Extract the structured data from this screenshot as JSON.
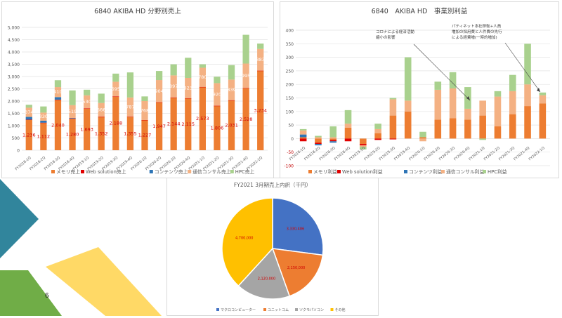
{
  "page_number": "6",
  "chart_data": [
    {
      "id": "sales_by_segment",
      "type": "bar",
      "stacked": true,
      "title": "6840 AKIBA HD 分野別売上",
      "ylim": [
        0,
        5000
      ],
      "y_ticks": [
        "0",
        "500",
        "1,000",
        "1,500",
        "2,000",
        "2,500",
        "3,000",
        "3,500",
        "4,000",
        "4,500",
        "5,000"
      ],
      "grid": true,
      "legend_position": "bottom",
      "categories": [
        "FY2018-1Q",
        "FY2018-2Q",
        "FY2018-3Q",
        "FY2018-4Q",
        "FY2019-1Q",
        "FY2019-2Q",
        "FY2019-3Q",
        "FY2019-4Q",
        "FY2020-1Q",
        "FY2020-2Q",
        "FY2020-3Q",
        "FY2020-4Q",
        "FY2021-1Q",
        "FY2021-2Q",
        "FY2021-3Q",
        "FY2021-4Q",
        "FY2022-1Q"
      ],
      "series": [
        {
          "name": "メモリ売上",
          "color": "#ED7D31",
          "values": [
            1236,
            1112,
            2040,
            1280,
            1693,
            1352,
            2188,
            1355,
            1227,
            1947,
            2144,
            2115,
            2573,
            1806,
            2031,
            2528,
            3234
          ],
          "labels": [
            "1,236",
            "1,112",
            "2,040",
            "1,280",
            "1,693",
            "1,352",
            "2,188",
            "1,355",
            "1,227",
            "1,947",
            "2,144",
            "2,115",
            "2,573",
            "1,806",
            "2,031",
            "2,528",
            "3,234"
          ]
        },
        {
          "name": "Web solution売上",
          "color": "#E00000",
          "values": [
            10,
            10,
            20,
            15,
            10,
            5,
            5,
            5,
            5,
            5,
            5,
            5,
            5,
            5,
            5,
            5,
            5
          ]
        },
        {
          "name": "コンテンツ売上",
          "color": "#2E75B6",
          "values": [
            110,
            80,
            100,
            20,
            0,
            0,
            0,
            0,
            0,
            0,
            0,
            0,
            0,
            0,
            0,
            0,
            0
          ]
        },
        {
          "name": "通信コンサル売上",
          "color": "#F4B183",
          "values": [
            374,
            330,
            410,
            519,
            530,
            566,
            595,
            787,
            768,
            904,
            897,
            823,
            780,
            920,
            839,
            995,
            883
          ],
          "labels": [
            "374",
            "330",
            "410",
            "519",
            "530",
            "566",
            "595",
            "787",
            "768",
            "904",
            "897",
            "823",
            "780",
            "920",
            "839",
            "995",
            "883"
          ]
        },
        {
          "name": "HPC売上",
          "color": "#A9D18E",
          "values": [
            120,
            250,
            280,
            600,
            230,
            380,
            330,
            1020,
            190,
            370,
            450,
            820,
            140,
            260,
            590,
            1170,
            220
          ]
        }
      ]
    },
    {
      "id": "profit_by_segment",
      "type": "bar",
      "stacked": true,
      "title": "6840　AKIBA HD　事業別利益",
      "ylim": [
        -100,
        400
      ],
      "y_ticks": [
        "-100",
        "-50",
        "0",
        "50",
        "100",
        "150",
        "200",
        "250",
        "300",
        "350",
        "400"
      ],
      "grid": true,
      "legend_position": "bottom",
      "categories": [
        "FY2018-1Q",
        "FY2018-2Q",
        "FY2018-3Q",
        "FY2018-4Q",
        "FY2019-1Q",
        "FY2019-2Q",
        "FY2019-3Q",
        "FY2019-4Q",
        "FY2020-1Q",
        "FY2020-2Q",
        "FY2020-3Q",
        "FY2020-4Q",
        "FY2021-1Q",
        "FY2021-2Q",
        "FY2021-3Q",
        "FY2021-4Q",
        "FY2022-1Q"
      ],
      "series": [
        {
          "name": "メモリ利益",
          "color": "#ED7D31",
          "values": [
            5,
            -15,
            -5,
            40,
            -20,
            20,
            85,
            100,
            5,
            70,
            75,
            70,
            85,
            45,
            90,
            120,
            130
          ]
        },
        {
          "name": "Web solution利益",
          "color": "#E00000",
          "values": [
            -10,
            -5,
            -5,
            -10,
            -5,
            -5,
            -3,
            0,
            0,
            0,
            0,
            0,
            0,
            0,
            0,
            0,
            0
          ]
        },
        {
          "name": "コンテンツ利益",
          "color": "#2E75B6",
          "values": [
            10,
            -5,
            -5,
            0,
            0,
            0,
            0,
            0,
            0,
            0,
            0,
            0,
            0,
            0,
            0,
            0,
            0
          ]
        },
        {
          "name": "通信コンサル利益",
          "color": "#F4B183",
          "values": [
            15,
            5,
            5,
            15,
            -5,
            15,
            60,
            40,
            -10,
            110,
            110,
            40,
            55,
            110,
            85,
            80,
            30
          ]
        },
        {
          "name": "HPC利益",
          "color": "#A9D18E",
          "values": [
            5,
            5,
            40,
            50,
            -10,
            20,
            5,
            160,
            20,
            30,
            60,
            80,
            -5,
            20,
            60,
            150,
            10
          ]
        }
      ],
      "annotations": [
        "コロナによる経済活動\n縮小の影響",
        "パティネット本社移転+人員\n増加の採用費と人件費の先行\nによる経費増(一時的増加)"
      ]
    },
    {
      "id": "fy2021_sales_breakdown",
      "type": "pie",
      "title": "FY2021 3月期売上内訳（千円）",
      "slices": [
        {
          "name": "マクロコンピューター",
          "value": 3330486,
          "label": "3,330,486",
          "color": "#4472C4"
        },
        {
          "name": "ユニットコム",
          "value": 2150000,
          "label": "2,150,000",
          "color": "#ED7D31"
        },
        {
          "name": "ツクモパソコン",
          "value": 2120000,
          "label": "2,120,000",
          "color": "#A5A5A5"
        },
        {
          "name": "その他",
          "value": 4700000,
          "label": "4,700,000",
          "color": "#FFC000"
        }
      ],
      "legend_position": "bottom"
    }
  ]
}
